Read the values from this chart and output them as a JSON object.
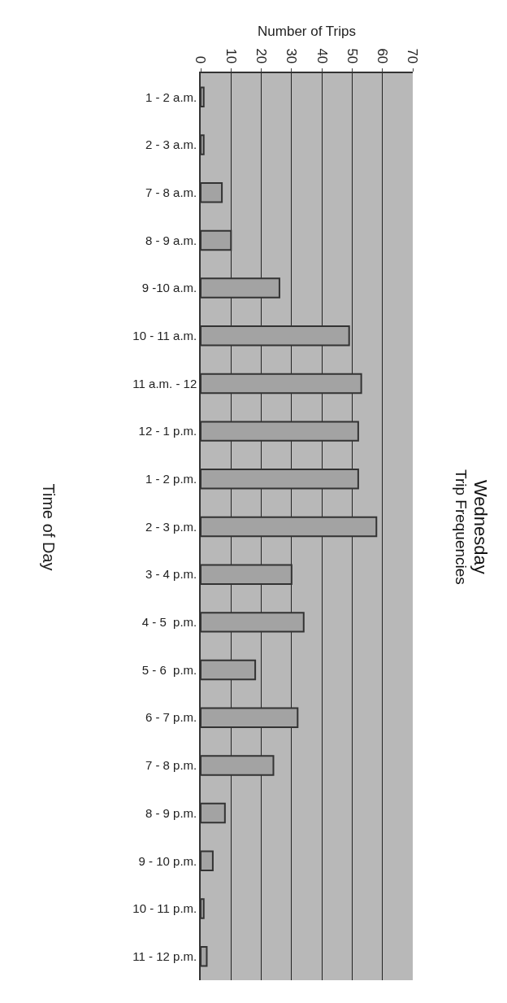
{
  "chart_data": {
    "type": "bar",
    "orientation": "horizontal",
    "title": "Wednesday",
    "subtitle": "Trip Frequencies",
    "xlabel": "Number of Trips",
    "ylabel": "Time of Day",
    "categories": [
      "1 - 2 a.m.",
      "2 - 3 a.m.",
      "7 - 8 a.m.",
      "8 - 9 a.m.",
      "9 -10 a.m.",
      "10 - 11 a.m.",
      "11 a.m. - 12",
      "12 - 1 p.m.",
      "1 - 2 p.m.",
      "2 - 3 p.m.",
      "3 - 4 p.m.",
      "4 - 5  p.m.",
      "5 - 6  p.m.",
      "6 - 7 p.m.",
      "7 - 8 p.m.",
      "8 - 9 p.m.",
      "9 - 10 p.m.",
      "10 - 11 p.m.",
      "11 - 12 p.m."
    ],
    "values": [
      1,
      1,
      7,
      10,
      26,
      49,
      53,
      52,
      52,
      58,
      30,
      34,
      18,
      32,
      24,
      8,
      4,
      1,
      2
    ],
    "color": "#a3a3a3",
    "xlim": [
      0,
      70
    ],
    "xticks": [
      0,
      10,
      20,
      30,
      40,
      50,
      60,
      70
    ],
    "grid": "x",
    "legend": false
  }
}
